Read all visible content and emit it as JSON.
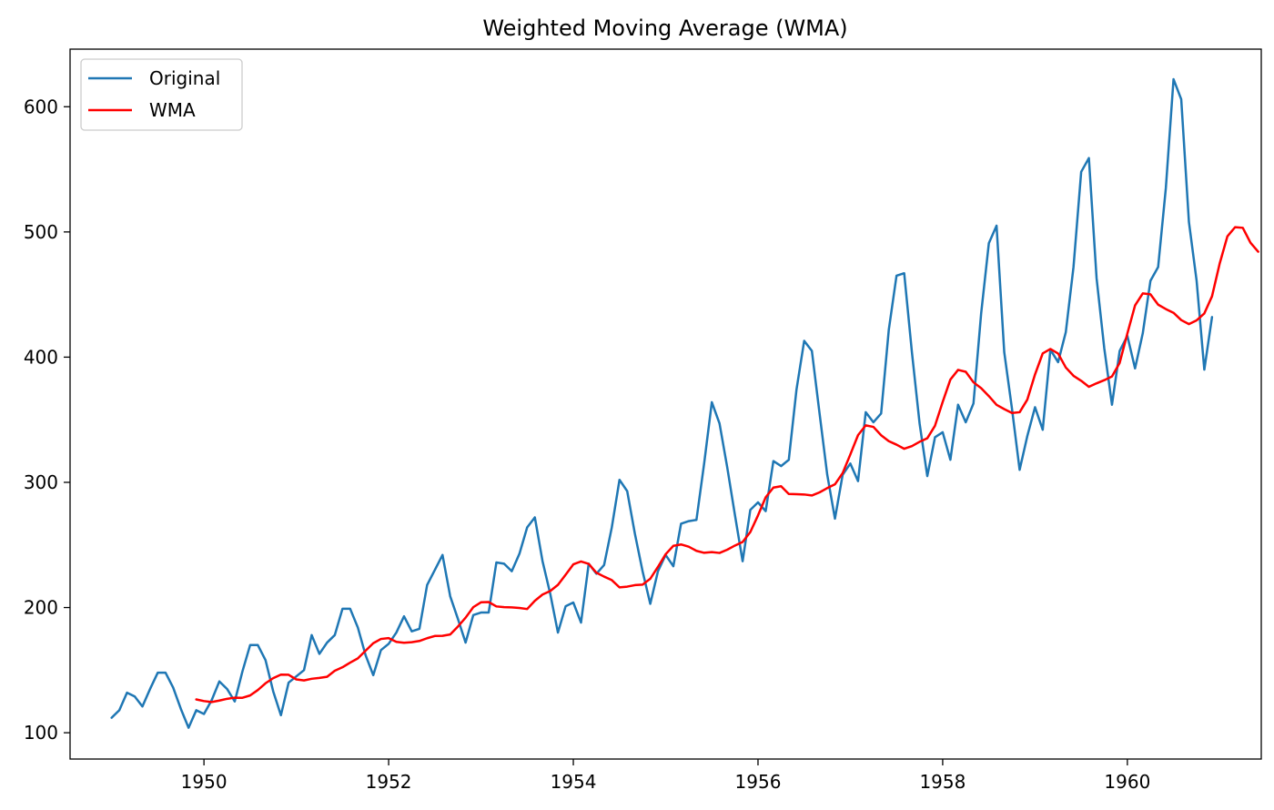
{
  "chart_data": {
    "type": "line",
    "title": "Weighted Moving Average (WMA)",
    "xlabel": "",
    "ylabel": "",
    "xlim": [
      1948.55,
      1961.45
    ],
    "ylim": [
      79,
      646
    ],
    "x_ticks": [
      "1950",
      "1952",
      "1954",
      "1956",
      "1958",
      "1960"
    ],
    "y_ticks": [
      "100",
      "200",
      "300",
      "400",
      "500",
      "600"
    ],
    "grid": false,
    "legend_position": "top-left",
    "legend": [
      "Original",
      "WMA"
    ],
    "series": [
      {
        "name": "Original",
        "color": "#1f77b4",
        "x_start": 1949.0,
        "x_step": 0.083333,
        "values": [
          112,
          118,
          132,
          129,
          121,
          135,
          148,
          148,
          136,
          119,
          104,
          118,
          115,
          126,
          141,
          135,
          125,
          149,
          170,
          170,
          158,
          133,
          114,
          140,
          145,
          150,
          178,
          163,
          172,
          178,
          199,
          199,
          184,
          162,
          146,
          166,
          171,
          180,
          193,
          181,
          183,
          218,
          230,
          242,
          209,
          191,
          172,
          194,
          196,
          196,
          236,
          235,
          229,
          243,
          264,
          272,
          237,
          211,
          180,
          201,
          204,
          188,
          235,
          227,
          234,
          264,
          302,
          293,
          259,
          229,
          203,
          229,
          242,
          233,
          267,
          269,
          270,
          315,
          364,
          347,
          312,
          274,
          237,
          278,
          284,
          277,
          317,
          313,
          318,
          374,
          413,
          405,
          355,
          306,
          271,
          306,
          315,
          301,
          356,
          348,
          355,
          422,
          465,
          467,
          404,
          347,
          305,
          336,
          340,
          318,
          362,
          348,
          363,
          435,
          491,
          505,
          404,
          359,
          310,
          337,
          360,
          342,
          406,
          396,
          420,
          472,
          548,
          559,
          463,
          407,
          362,
          405,
          417,
          391,
          419,
          461,
          472,
          535,
          622,
          606,
          508,
          461,
          390,
          432
        ]
      },
      {
        "name": "WMA",
        "color": "#ff0000",
        "x_start": 1949.916667,
        "x_step": 0.083333,
        "values": [
          126.6,
          125.3,
          124.5,
          125.7,
          127.1,
          128.0,
          127.9,
          129.8,
          134.1,
          139.5,
          143.6,
          146.4,
          146.3,
          142.6,
          141.8,
          143.1,
          143.8,
          144.7,
          149.5,
          152.3,
          156.0,
          159.4,
          165.5,
          171.5,
          174.9,
          175.6,
          172.6,
          171.9,
          172.3,
          173.3,
          175.5,
          177.3,
          177.4,
          178.5,
          184.8,
          191.9,
          200.3,
          204.2,
          204.4,
          200.9,
          200.3,
          200.1,
          199.7,
          198.8,
          205.4,
          210.4,
          213.2,
          218.1,
          226.2,
          234.5,
          236.8,
          234.9,
          227.8,
          224.7,
          221.9,
          216.1,
          216.7,
          217.9,
          218.3,
          223.0,
          232.5,
          242.6,
          249.3,
          250.4,
          248.6,
          245.3,
          243.7,
          244.3,
          243.6,
          246.2,
          249.5,
          252.4,
          260.3,
          273.6,
          288.1,
          295.8,
          296.9,
          290.7,
          290.5,
          290.3,
          289.5,
          292.0,
          295.4,
          298.4,
          307.4,
          322.3,
          337.7,
          345.5,
          344.3,
          337.6,
          332.9,
          330.1,
          326.8,
          328.9,
          332.4,
          335.2,
          345.2,
          364.2,
          382.1,
          389.8,
          388.3,
          379.9,
          375.2,
          368.9,
          361.9,
          358.5,
          355.4,
          356.0,
          366.1,
          386.2,
          403.0,
          406.5,
          402.9,
          391.7,
          385.1,
          381.1,
          376.3,
          379.1,
          381.6,
          384.6,
          395.4,
          418.9,
          441.3,
          450.9,
          450.2,
          441.9,
          438.4,
          435.4,
          429.6,
          426.4,
          429.4,
          434.9,
          448.6,
          474.8,
          496.5,
          503.8,
          503.3,
          491.4,
          484.2
        ]
      }
    ]
  }
}
